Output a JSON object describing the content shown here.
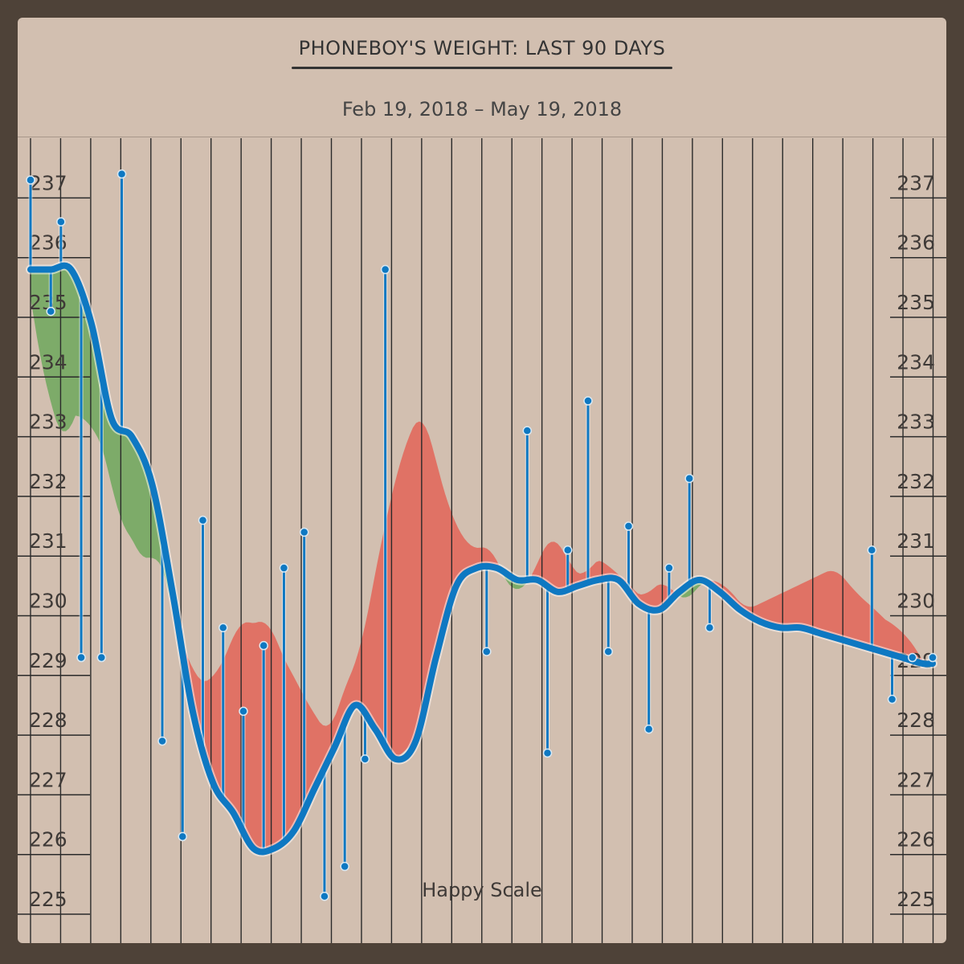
{
  "header": {
    "title": "PHONEBOY'S WEIGHT: LAST 90 DAYS",
    "subtitle": "Feb 19, 2018 – May 19, 2018"
  },
  "watermark": "Happy Scale",
  "colors": {
    "frame": "#4e4238",
    "background": "#d2bfb0",
    "grid": "#2a2a2a",
    "trend": "#0e78c2",
    "loss_fill": "#7dab69",
    "gain_fill": "#e07265"
  },
  "chart_data": {
    "type": "line",
    "title": "PHONEBOY'S WEIGHT: LAST 90 DAYS",
    "subtitle": "Feb 19, 2018 – May 19, 2018",
    "ylim": [
      224.5,
      238
    ],
    "y_ticks": [
      225,
      226,
      227,
      228,
      229,
      230,
      231,
      232,
      233,
      234,
      235,
      236,
      237
    ],
    "y_tick_labels": [
      "225",
      "226",
      "227",
      "228",
      "229",
      "230",
      "231",
      "232",
      "233",
      "234",
      "235",
      "236",
      "237"
    ],
    "axis_sides": [
      "left",
      "right"
    ],
    "grid": true,
    "date_range": [
      "2018-02-19",
      "2018-05-19"
    ],
    "series": [
      {
        "name": "",
        "kind": "measurement",
        "x": [
          "2018-02-19",
          "2018-02-21",
          "2018-02-22",
          "2018-02-24",
          "2018-02-26",
          "2018-02-28",
          "2018-03-04",
          "2018-03-06",
          "2018-03-08",
          "2018-03-10",
          "2018-03-12",
          "2018-03-14",
          "2018-03-16",
          "2018-03-18",
          "2018-03-20",
          "2018-03-22",
          "2018-03-24",
          "2018-03-26",
          "2018-04-05",
          "2018-04-09",
          "2018-04-11",
          "2018-04-13",
          "2018-04-15",
          "2018-04-17",
          "2018-04-19",
          "2018-04-21",
          "2018-04-23",
          "2018-04-25",
          "2018-04-27",
          "2018-05-13",
          "2018-05-15",
          "2018-05-17",
          "2018-05-19"
        ],
        "values": [
          237.3,
          235.1,
          236.6,
          229.3,
          229.3,
          237.4,
          227.9,
          226.3,
          231.6,
          229.8,
          228.4,
          229.5,
          230.8,
          231.4,
          225.3,
          225.8,
          227.6,
          235.8,
          229.4,
          233.1,
          227.7,
          231.1,
          233.6,
          229.4,
          231.5,
          228.1,
          230.8,
          232.3,
          229.8,
          231.1,
          228.6,
          229.3,
          229.3
        ]
      },
      {
        "name": "",
        "kind": "trend",
        "x": [
          "2018-02-19",
          "2018-02-21",
          "2018-02-23",
          "2018-02-25",
          "2018-02-27",
          "2018-03-01",
          "2018-03-03",
          "2018-03-05",
          "2018-03-07",
          "2018-03-09",
          "2018-03-11",
          "2018-03-13",
          "2018-03-15",
          "2018-03-17",
          "2018-03-19",
          "2018-03-21",
          "2018-03-23",
          "2018-03-25",
          "2018-03-27",
          "2018-03-29",
          "2018-03-31",
          "2018-04-02",
          "2018-04-04",
          "2018-04-06",
          "2018-04-08",
          "2018-04-10",
          "2018-04-12",
          "2018-04-14",
          "2018-04-16",
          "2018-04-18",
          "2018-04-20",
          "2018-04-22",
          "2018-04-24",
          "2018-04-26",
          "2018-04-28",
          "2018-04-30",
          "2018-05-02",
          "2018-05-04",
          "2018-05-06",
          "2018-05-08",
          "2018-05-10",
          "2018-05-12",
          "2018-05-14",
          "2018-05-16",
          "2018-05-18",
          "2018-05-19"
        ],
        "values": [
          235.8,
          235.8,
          235.8,
          234.9,
          233.3,
          233.0,
          232.2,
          230.4,
          228.4,
          227.2,
          226.7,
          226.1,
          226.1,
          226.4,
          227.1,
          227.8,
          228.5,
          228.1,
          227.6,
          227.9,
          229.3,
          230.5,
          230.8,
          230.8,
          230.6,
          230.6,
          230.4,
          230.5,
          230.6,
          230.6,
          230.2,
          230.1,
          230.4,
          230.6,
          230.4,
          230.1,
          229.9,
          229.8,
          229.8,
          229.7,
          229.6,
          229.5,
          229.4,
          229.3,
          229.2,
          229.2
        ]
      }
    ]
  }
}
